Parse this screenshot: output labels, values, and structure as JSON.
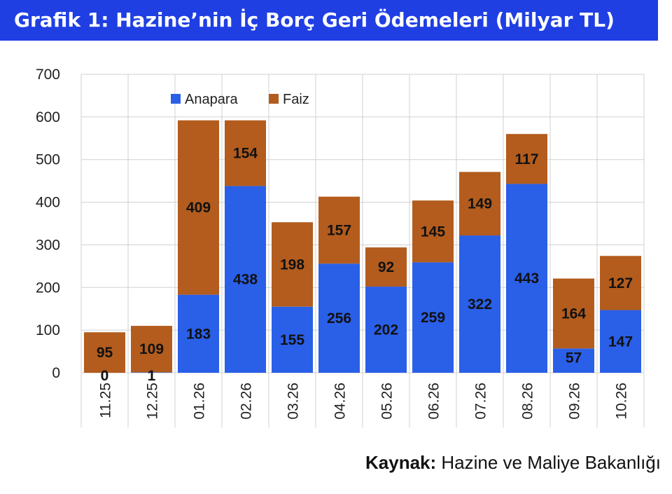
{
  "header": {
    "title": "Grafik 1: Hazine’nin İç Borç Geri Ödemeleri (Milyar TL)"
  },
  "footer": {
    "source_label": "Kaynak:",
    "source_text": "Hazine ve Maliye Bakanlığı"
  },
  "colors": {
    "title_bg": "#1f3fe3",
    "anapara": "#2a5fe8",
    "faiz": "#b35c1e"
  },
  "chart_data": {
    "type": "bar",
    "stacked": true,
    "categories": [
      "11.25",
      "12.25",
      "01.26",
      "02.26",
      "03.26",
      "04.26",
      "05.26",
      "06.26",
      "07.26",
      "08.26",
      "09.26",
      "10.26"
    ],
    "series": [
      {
        "name": "Anapara",
        "values": [
          0,
          1,
          183,
          438,
          155,
          256,
          202,
          259,
          322,
          443,
          57,
          147
        ]
      },
      {
        "name": "Faiz",
        "values": [
          95,
          109,
          409,
          154,
          198,
          157,
          92,
          145,
          149,
          117,
          164,
          127
        ]
      }
    ],
    "ylim": [
      0,
      700
    ],
    "yticks": [
      0,
      100,
      200,
      300,
      400,
      500,
      600,
      700
    ],
    "grid": true,
    "legend_position": "top-left",
    "xtick_rotation": "vertical"
  }
}
